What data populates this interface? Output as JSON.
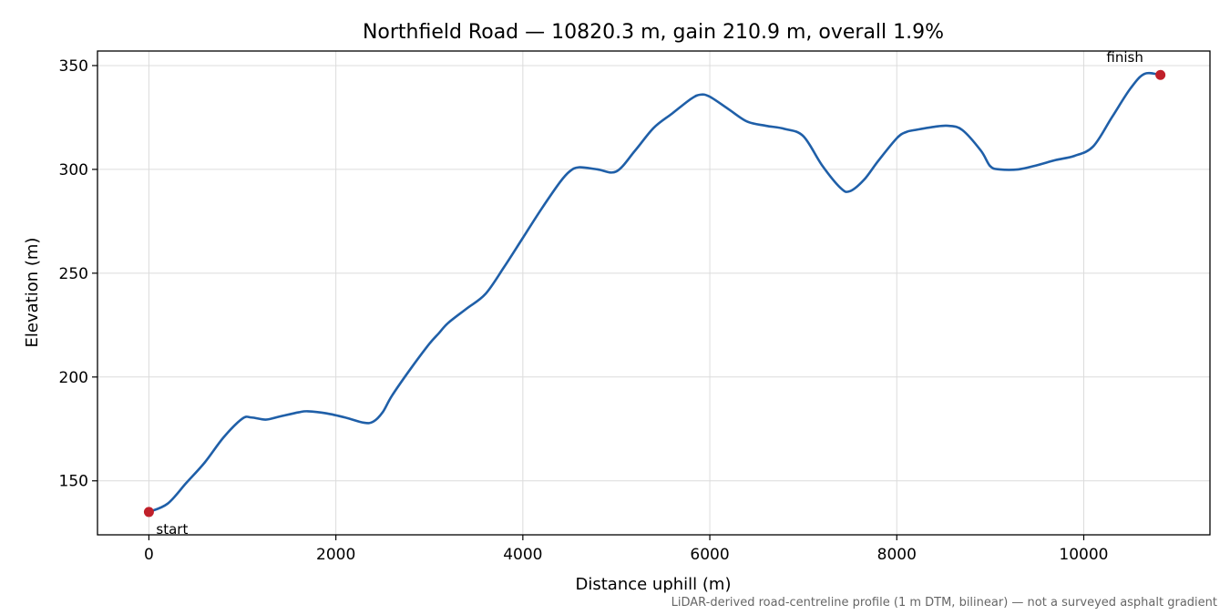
{
  "chart_data": {
    "type": "line",
    "title": "Northfield Road — 10820.3 m, gain 210.9 m, overall 1.9%",
    "xlabel": "Distance uphill (m)",
    "ylabel": "Elevation (m)",
    "xlim": [
      -550,
      11350
    ],
    "ylim": [
      124,
      357
    ],
    "xticks": [
      0,
      2000,
      4000,
      6000,
      8000,
      10000
    ],
    "yticks": [
      150,
      200,
      250,
      300,
      350
    ],
    "grid": true,
    "line_color": "#1f5fa8",
    "marker_color": "#c0202a",
    "x": [
      0,
      200,
      400,
      600,
      800,
      1000,
      1100,
      1250,
      1400,
      1600,
      1700,
      1900,
      2100,
      2300,
      2400,
      2500,
      2600,
      2800,
      3000,
      3100,
      3200,
      3400,
      3600,
      3800,
      4000,
      4200,
      4400,
      4500,
      4600,
      4800,
      5000,
      5200,
      5400,
      5600,
      5800,
      5900,
      6000,
      6200,
      6400,
      6600,
      6800,
      7000,
      7200,
      7400,
      7500,
      7650,
      7800,
      8000,
      8100,
      8200,
      8400,
      8550,
      8700,
      8900,
      9000,
      9100,
      9300,
      9500,
      9700,
      9900,
      10100,
      10300,
      10500,
      10650,
      10820.3
    ],
    "y": [
      135,
      139,
      149,
      159,
      171,
      180,
      180.5,
      179.5,
      181,
      183,
      183.5,
      182.5,
      180.5,
      178,
      178.5,
      183,
      191,
      204,
      216,
      221,
      226,
      233,
      240,
      253,
      267,
      281,
      294,
      299,
      301,
      300,
      299,
      309,
      320,
      327,
      334,
      336,
      335,
      329,
      323,
      321,
      319.5,
      316,
      302,
      291,
      289.5,
      295,
      304,
      315,
      318,
      319,
      320.5,
      321,
      319,
      309,
      301.5,
      300,
      300,
      302,
      304.5,
      306.5,
      311,
      325,
      339,
      346,
      345.5
    ],
    "annotations": [
      {
        "text": "start",
        "x": 0,
        "y": 135
      },
      {
        "text": "finish",
        "x": 10820.3,
        "y": 345.5
      }
    ],
    "footnote": "LiDAR-derived road-centreline profile (1 m DTM, bilinear) — not a surveyed asphalt gradient"
  }
}
